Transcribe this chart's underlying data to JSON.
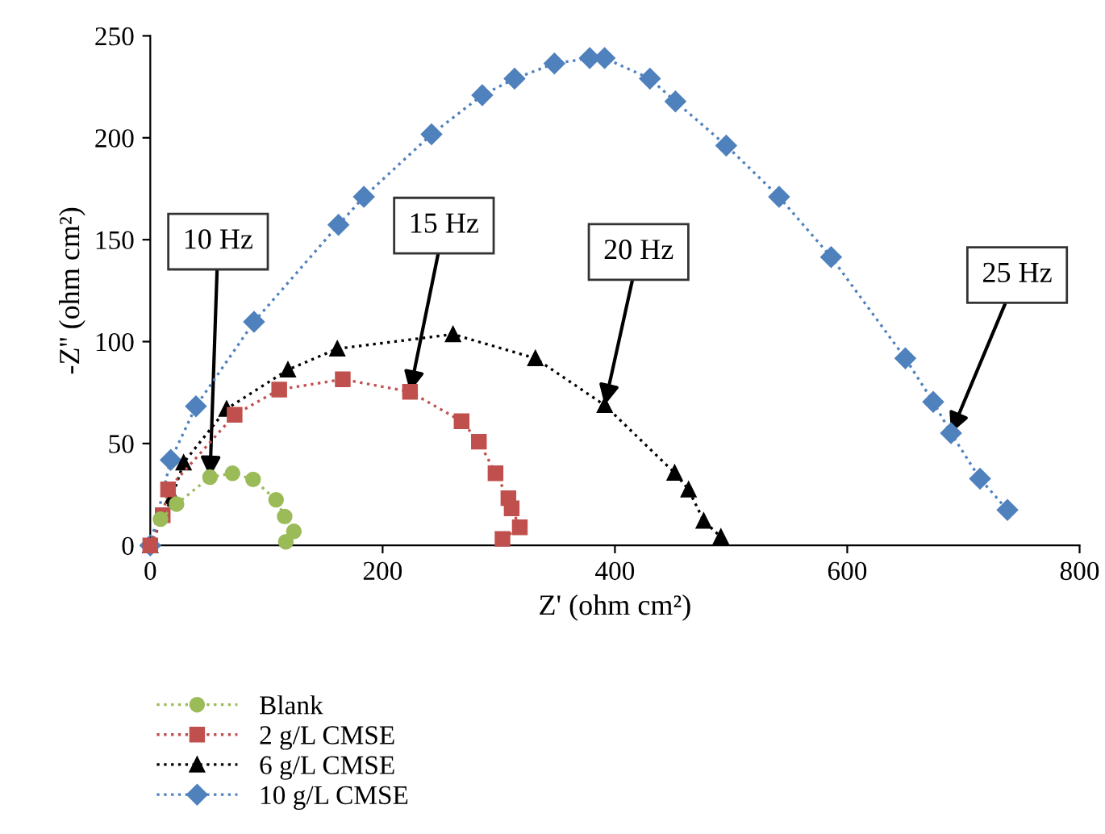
{
  "chart_data": {
    "type": "line",
    "xlabel": "Z' (ohm cm²)",
    "ylabel": "-Z'' (ohm cm²)",
    "xlim": [
      0,
      800
    ],
    "xticks": [
      0,
      200,
      400,
      600,
      800
    ],
    "ylim": [
      0,
      250
    ],
    "yticks": [
      0,
      50,
      100,
      150,
      200,
      250
    ],
    "grid": false,
    "legend": "bottom left",
    "line_style": "dotted",
    "series": [
      {
        "name": "Blank",
        "color": "#9bbb59",
        "marker": "circle",
        "x": [
          8.8,
          22.6,
          51.4,
          70.8,
          88.5,
          108.3,
          115.7,
          123.6,
          116.7
        ],
        "values": [
          12.9,
          20.3,
          33.5,
          35.4,
          32.4,
          22.4,
          14.2,
          6.9,
          1.8
        ]
      },
      {
        "name": "2 g/L CMSE",
        "color": "#c0504d",
        "marker": "square",
        "x": [
          0,
          10.7,
          15.3,
          72.6,
          111,
          165.7,
          223.6,
          268,
          282.9,
          297.2,
          308.3,
          311.1,
          318.1,
          303.2
        ],
        "values": [
          0,
          14.8,
          27.5,
          64.1,
          76.5,
          81.5,
          75.4,
          60.9,
          50.9,
          35.4,
          23.2,
          18.2,
          8.9,
          3.2
        ]
      },
      {
        "name": "6 g/L CMSE",
        "color": "#000000",
        "marker": "triangle",
        "x": [
          0,
          19,
          28.7,
          65.7,
          118.5,
          161,
          260.6,
          331.5,
          391.2,
          451.4,
          463.4,
          476.4,
          491.2
        ],
        "values": [
          0,
          24,
          40.6,
          67,
          86.2,
          96.5,
          103.6,
          91.8,
          68.8,
          35.6,
          27.4,
          12.1,
          4.2
        ]
      },
      {
        "name": "10 g/L CMSE",
        "color": "#4f81bd",
        "marker": "diamond",
        "x": [
          0,
          17.6,
          39.3,
          89.3,
          162,
          183.9,
          242.1,
          285.8,
          313.6,
          347.9,
          378.3,
          391.1,
          430.1,
          452.1,
          495.8,
          541.3,
          586.1,
          650,
          674,
          689.3,
          714.3,
          737.9
        ],
        "values": [
          0,
          41.9,
          68.3,
          109.7,
          157.3,
          171,
          201.7,
          220.9,
          229,
          236.4,
          239.1,
          239.1,
          229,
          217.8,
          196.2,
          171,
          141.5,
          91.8,
          70.4,
          55.1,
          32.7,
          17.4
        ]
      }
    ],
    "annotations": [
      {
        "text": "10 Hz",
        "x": 51.4,
        "y": 33.5
      },
      {
        "text": "15 Hz",
        "x": 223.6,
        "y": 75.4
      },
      {
        "text": "20 Hz",
        "x": 391.2,
        "y": 68.8
      },
      {
        "text": "25 Hz",
        "x": 689.3,
        "y": 55.1
      }
    ]
  }
}
